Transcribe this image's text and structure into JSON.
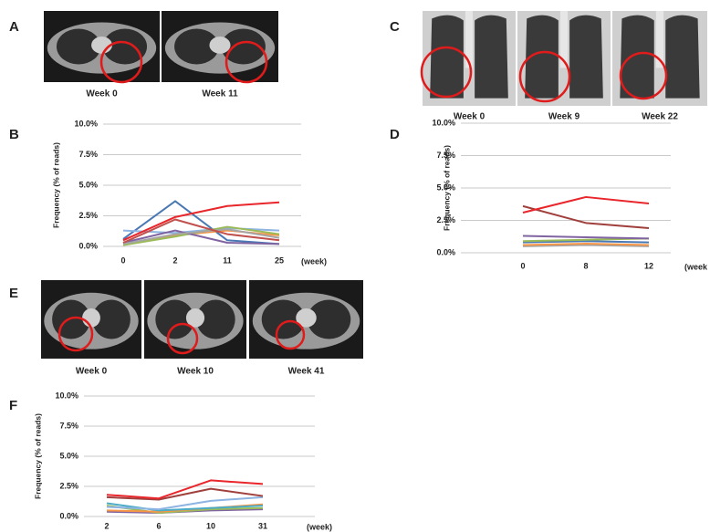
{
  "panels": [
    {
      "letter": "A",
      "labels": [
        "Week 0",
        "Week 11"
      ]
    },
    {
      "letter": "C",
      "labels": [
        "Week 0",
        "Week 9",
        "Week 22"
      ]
    },
    {
      "letter": "E",
      "labels": [
        "Week 0",
        "Week 10",
        "Week 41"
      ]
    }
  ],
  "chart_data": [
    {
      "type": "line",
      "panel": "B",
      "y_label": "Frequency (% of reads)",
      "x_label": "(week)",
      "categories": [
        "0",
        "2",
        "11",
        "25"
      ],
      "ylim": [
        0,
        10
      ],
      "yticks": [
        {
          "value": 0,
          "label": "0.0%"
        },
        {
          "value": 2.5,
          "label": "2.5%"
        },
        {
          "value": 5,
          "label": "5.0%"
        },
        {
          "value": 7.5,
          "label": "7.5%"
        },
        {
          "value": 10,
          "label": "10.0%"
        }
      ],
      "grid": true,
      "series": [
        {
          "color": "#4a78b5",
          "values": [
            0.6,
            3.7,
            0.5,
            0.2
          ]
        },
        {
          "color": "#8db4e2",
          "values": [
            1.3,
            1.1,
            1.5,
            1.3
          ]
        },
        {
          "color": "#f79646",
          "values": [
            0.2,
            0.9,
            1.3,
            0.9
          ]
        },
        {
          "color": "#9bbb59",
          "values": [
            0.1,
            0.8,
            1.6,
            1.0
          ]
        },
        {
          "color": "#8064a2",
          "values": [
            0.3,
            1.3,
            0.3,
            0.2
          ]
        },
        {
          "color": "#a5a5a5",
          "values": [
            0.2,
            1.0,
            1.4,
            0.7
          ]
        },
        {
          "color": "#c0504d",
          "values": [
            0.3,
            2.2,
            1.0,
            0.5
          ]
        },
        {
          "color": "#e8262b",
          "values": [
            0.5,
            2.4,
            3.3,
            3.6
          ]
        }
      ]
    },
    {
      "type": "line",
      "panel": "D",
      "y_label": "Frequency (% of reads)",
      "x_label": "(week",
      "categories": [
        "0",
        "8",
        "12"
      ],
      "ylim": [
        0,
        10
      ],
      "yticks": [
        {
          "value": 0,
          "label": "0.0%"
        },
        {
          "value": 2.5,
          "label": "2.5%"
        },
        {
          "value": 5,
          "label": "5.0%"
        },
        {
          "value": 7.5,
          "label": "7.5%"
        },
        {
          "value": 10,
          "label": "10.0%"
        }
      ],
      "grid": true,
      "series": [
        {
          "color": "#a5a5a5",
          "values": [
            0.5,
            0.6,
            0.5
          ]
        },
        {
          "color": "#f79646",
          "values": [
            0.6,
            0.7,
            0.6
          ]
        },
        {
          "color": "#4a78b5",
          "values": [
            0.8,
            0.9,
            0.8
          ]
        },
        {
          "color": "#9bbb59",
          "values": [
            0.9,
            1.0,
            1.1
          ]
        },
        {
          "color": "#8064a2",
          "values": [
            1.3,
            1.2,
            1.1
          ]
        },
        {
          "color": "#a0403d",
          "values": [
            3.6,
            2.3,
            1.9
          ]
        },
        {
          "color": "#e8262b",
          "values": [
            3.1,
            4.3,
            3.8
          ]
        }
      ]
    },
    {
      "type": "line",
      "panel": "F",
      "y_label": "Frequency (% of reads)",
      "x_label": "(week)",
      "categories": [
        "2",
        "6",
        "10",
        "31"
      ],
      "ylim": [
        0,
        10
      ],
      "yticks": [
        {
          "value": 0,
          "label": "0.0%"
        },
        {
          "value": 2.5,
          "label": "2.5%"
        },
        {
          "value": 5,
          "label": "5.0%"
        },
        {
          "value": 7.5,
          "label": "7.5%"
        },
        {
          "value": 10,
          "label": "10.0%"
        }
      ],
      "grid": true,
      "series": [
        {
          "color": "#8064a2",
          "values": [
            0.4,
            0.3,
            0.5,
            0.6
          ]
        },
        {
          "color": "#9bbb59",
          "values": [
            0.9,
            0.3,
            0.6,
            0.7
          ]
        },
        {
          "color": "#f79646",
          "values": [
            0.5,
            0.4,
            0.7,
            1.0
          ]
        },
        {
          "color": "#4bacc6",
          "values": [
            1.1,
            0.5,
            0.7,
            0.9
          ]
        },
        {
          "color": "#8db4e2",
          "values": [
            0.8,
            0.6,
            1.3,
            1.6
          ]
        },
        {
          "color": "#a0403d",
          "values": [
            1.6,
            1.4,
            2.3,
            1.7
          ]
        },
        {
          "color": "#e8262b",
          "values": [
            1.8,
            1.5,
            3.0,
            2.7
          ]
        }
      ]
    }
  ]
}
